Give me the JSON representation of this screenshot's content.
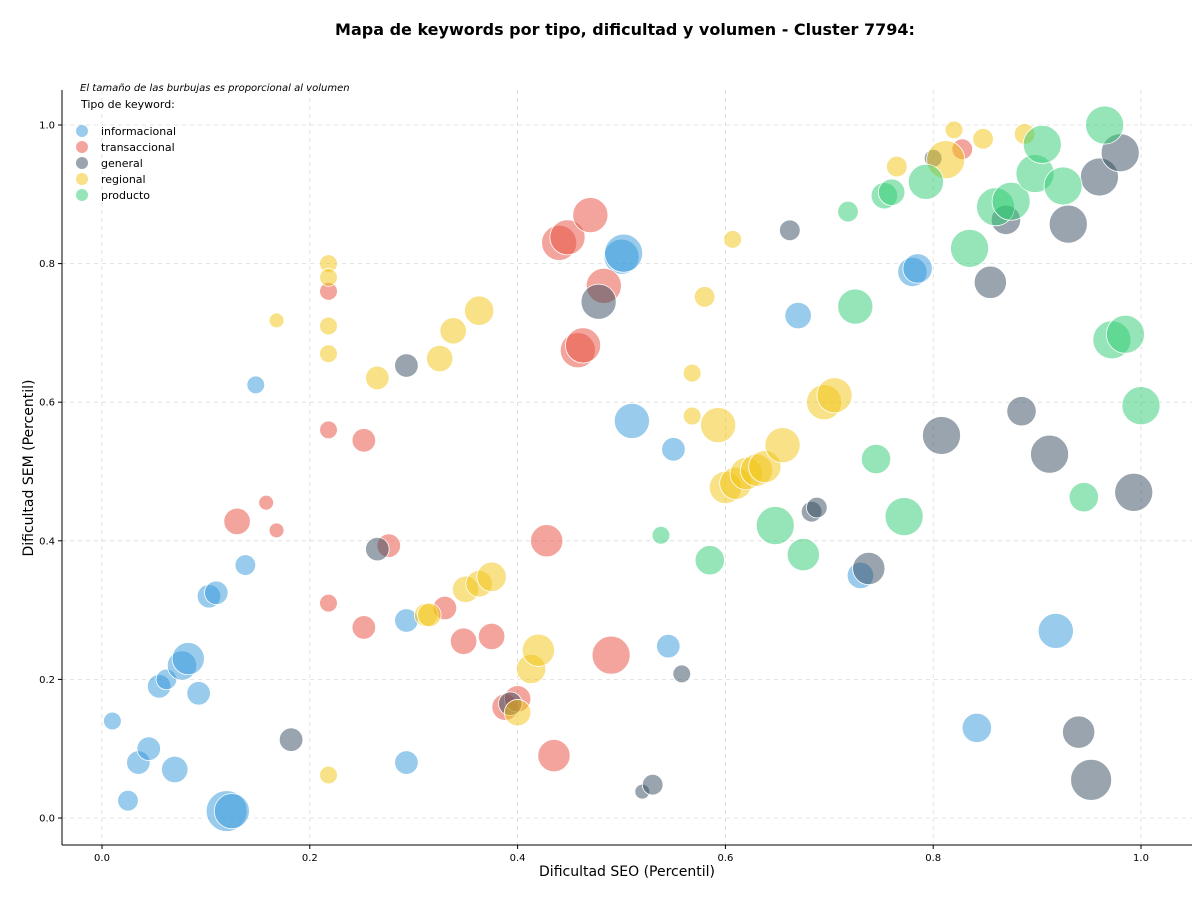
{
  "chart_data": {
    "type": "scatter",
    "title": "Mapa de keywords por tipo, dificultad y volumen - Cluster 7794:",
    "xlabel": "Dificultad SEO (Percentil)",
    "ylabel": "Dificultad SEM (Percentil)",
    "xlim": [
      -0.04,
      1.05
    ],
    "ylim": [
      -0.04,
      1.05
    ],
    "xticks": [
      "0.0",
      "0.2",
      "0.4",
      "0.6",
      "0.8",
      "1.0"
    ],
    "yticks": [
      "0.0",
      "0.2",
      "0.4",
      "0.6",
      "0.8",
      "1.0"
    ],
    "grid": true,
    "note": "El tamaño de las burbujas es proporcional al volumen",
    "legend_title": "Tipo de keyword:",
    "legend_position": "top-left",
    "series": [
      {
        "name": "informacional",
        "color": "#3498db",
        "points": [
          [
            0.01,
            0.14,
            2
          ],
          [
            0.025,
            0.025,
            3
          ],
          [
            0.035,
            0.08,
            4
          ],
          [
            0.045,
            0.1,
            4
          ],
          [
            0.055,
            0.19,
            4
          ],
          [
            0.062,
            0.2,
            3
          ],
          [
            0.07,
            0.07,
            5
          ],
          [
            0.077,
            0.22,
            6
          ],
          [
            0.083,
            0.23,
            7
          ],
          [
            0.093,
            0.18,
            4
          ],
          [
            0.103,
            0.32,
            4
          ],
          [
            0.11,
            0.325,
            4
          ],
          [
            0.12,
            0.01,
            10
          ],
          [
            0.125,
            0.01,
            8
          ],
          [
            0.138,
            0.365,
            3
          ],
          [
            0.148,
            0.625,
            2
          ],
          [
            0.293,
            0.285,
            4
          ],
          [
            0.293,
            0.08,
            4
          ],
          [
            0.5,
            0.81,
            8
          ],
          [
            0.502,
            0.815,
            9
          ],
          [
            0.51,
            0.573,
            8
          ],
          [
            0.55,
            0.532,
            4
          ],
          [
            0.545,
            0.248,
            4
          ],
          [
            0.67,
            0.725,
            5
          ],
          [
            0.73,
            0.35,
            5
          ],
          [
            0.78,
            0.788,
            6
          ],
          [
            0.785,
            0.793,
            6
          ],
          [
            0.842,
            0.13,
            6
          ],
          [
            0.918,
            0.27,
            8
          ]
        ]
      },
      {
        "name": "transaccional",
        "color": "#e74c3c",
        "points": [
          [
            0.13,
            0.428,
            5
          ],
          [
            0.158,
            0.455,
            1
          ],
          [
            0.168,
            0.415,
            1
          ],
          [
            0.218,
            0.76,
            2
          ],
          [
            0.218,
            0.56,
            2
          ],
          [
            0.218,
            0.31,
            2
          ],
          [
            0.252,
            0.545,
            4
          ],
          [
            0.252,
            0.275,
            4
          ],
          [
            0.276,
            0.393,
            4
          ],
          [
            0.33,
            0.303,
            4
          ],
          [
            0.348,
            0.255,
            5
          ],
          [
            0.375,
            0.262,
            5
          ],
          [
            0.388,
            0.16,
            5
          ],
          [
            0.4,
            0.172,
            5
          ],
          [
            0.428,
            0.4,
            7
          ],
          [
            0.435,
            0.09,
            7
          ],
          [
            0.44,
            0.83,
            8
          ],
          [
            0.448,
            0.838,
            8
          ],
          [
            0.458,
            0.675,
            8
          ],
          [
            0.463,
            0.682,
            8
          ],
          [
            0.47,
            0.87,
            8
          ],
          [
            0.483,
            0.768,
            8
          ],
          [
            0.49,
            0.235,
            9
          ],
          [
            0.828,
            0.965,
            3
          ]
        ]
      },
      {
        "name": "general",
        "color": "#34495e",
        "points": [
          [
            0.182,
            0.113,
            4
          ],
          [
            0.265,
            0.388,
            4
          ],
          [
            0.293,
            0.653,
            4
          ],
          [
            0.393,
            0.165,
            4
          ],
          [
            0.478,
            0.745,
            8
          ],
          [
            0.52,
            0.038,
            1
          ],
          [
            0.53,
            0.048,
            3
          ],
          [
            0.558,
            0.208,
            2
          ],
          [
            0.662,
            0.848,
            3
          ],
          [
            0.683,
            0.442,
            3
          ],
          [
            0.688,
            0.448,
            3
          ],
          [
            0.738,
            0.36,
            7
          ],
          [
            0.8,
            0.952,
            2
          ],
          [
            0.808,
            0.552,
            9
          ],
          [
            0.855,
            0.773,
            7
          ],
          [
            0.87,
            0.863,
            6
          ],
          [
            0.885,
            0.587,
            6
          ],
          [
            0.912,
            0.525,
            9
          ],
          [
            0.93,
            0.857,
            9
          ],
          [
            0.94,
            0.124,
            7
          ],
          [
            0.952,
            0.055,
            10
          ],
          [
            0.96,
            0.925,
            9
          ],
          [
            0.98,
            0.96,
            9
          ],
          [
            0.993,
            0.47,
            9
          ]
        ]
      },
      {
        "name": "regional",
        "color": "#f1c40f",
        "points": [
          [
            0.168,
            0.718,
            1
          ],
          [
            0.218,
            0.8,
            2
          ],
          [
            0.218,
            0.78,
            2
          ],
          [
            0.218,
            0.71,
            2
          ],
          [
            0.218,
            0.67,
            2
          ],
          [
            0.218,
            0.062,
            2
          ],
          [
            0.265,
            0.635,
            4
          ],
          [
            0.312,
            0.293,
            4
          ],
          [
            0.315,
            0.293,
            4
          ],
          [
            0.325,
            0.663,
            5
          ],
          [
            0.338,
            0.703,
            5
          ],
          [
            0.35,
            0.33,
            5
          ],
          [
            0.363,
            0.338,
            5
          ],
          [
            0.363,
            0.732,
            6
          ],
          [
            0.375,
            0.348,
            6
          ],
          [
            0.4,
            0.152,
            5
          ],
          [
            0.413,
            0.215,
            6
          ],
          [
            0.42,
            0.242,
            7
          ],
          [
            0.568,
            0.642,
            2
          ],
          [
            0.568,
            0.58,
            2
          ],
          [
            0.58,
            0.752,
            3
          ],
          [
            0.593,
            0.567,
            8
          ],
          [
            0.6,
            0.477,
            7
          ],
          [
            0.61,
            0.483,
            7
          ],
          [
            0.62,
            0.497,
            7
          ],
          [
            0.63,
            0.502,
            7
          ],
          [
            0.638,
            0.507,
            7
          ],
          [
            0.655,
            0.538,
            8
          ],
          [
            0.695,
            0.6,
            8
          ],
          [
            0.705,
            0.61,
            8
          ],
          [
            0.607,
            0.835,
            2
          ],
          [
            0.765,
            0.94,
            3
          ],
          [
            0.812,
            0.95,
            9
          ],
          [
            0.82,
            0.993,
            2
          ],
          [
            0.848,
            0.98,
            3
          ],
          [
            0.888,
            0.987,
            3
          ]
        ]
      },
      {
        "name": "producto",
        "color": "#2ecc71",
        "points": [
          [
            0.538,
            0.408,
            2
          ],
          [
            0.585,
            0.372,
            6
          ],
          [
            0.648,
            0.422,
            9
          ],
          [
            0.675,
            0.38,
            7
          ],
          [
            0.718,
            0.875,
            3
          ],
          [
            0.725,
            0.738,
            8
          ],
          [
            0.745,
            0.518,
            6
          ],
          [
            0.753,
            0.898,
            5
          ],
          [
            0.76,
            0.903,
            5
          ],
          [
            0.772,
            0.435,
            9
          ],
          [
            0.793,
            0.918,
            8
          ],
          [
            0.835,
            0.822,
            9
          ],
          [
            0.86,
            0.882,
            9
          ],
          [
            0.875,
            0.89,
            9
          ],
          [
            0.898,
            0.93,
            9
          ],
          [
            0.905,
            0.972,
            9
          ],
          [
            0.925,
            0.912,
            9
          ],
          [
            0.945,
            0.463,
            6
          ],
          [
            0.965,
            1.0,
            9
          ],
          [
            0.972,
            0.69,
            9
          ],
          [
            0.985,
            0.698,
            9
          ],
          [
            1.0,
            0.595,
            9
          ]
        ]
      }
    ]
  }
}
